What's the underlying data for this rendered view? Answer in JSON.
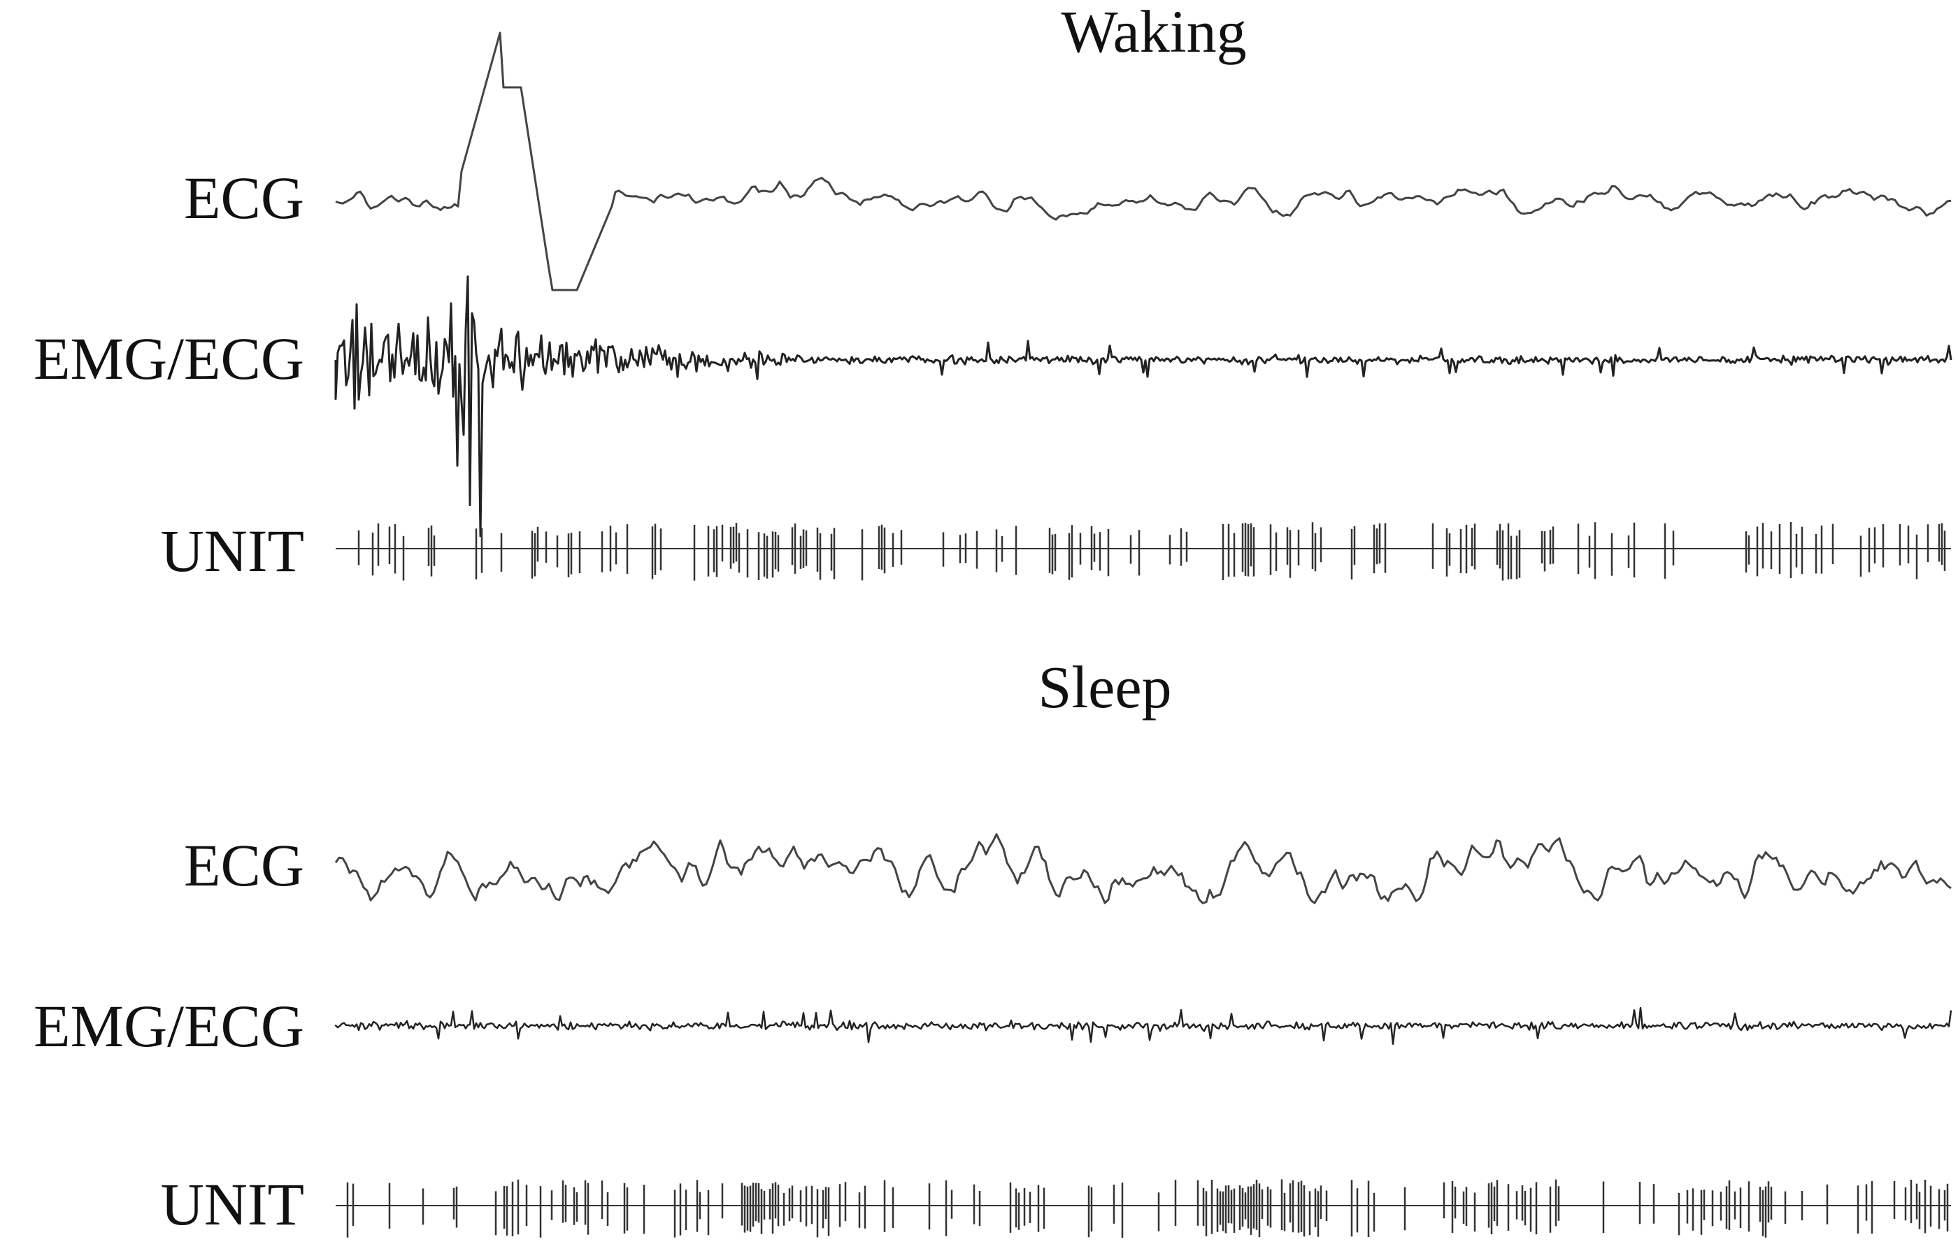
{
  "chart_data": [
    {
      "type": "line",
      "title": "Waking",
      "series": [
        {
          "name": "ECG",
          "kind": "trace",
          "color": "#444444"
        },
        {
          "name": "EMG/ECG",
          "kind": "trace",
          "color": "#222222"
        },
        {
          "name": "UNIT",
          "kind": "spikes",
          "color": "#333333"
        }
      ],
      "grid": false
    },
    {
      "type": "line",
      "title": "Sleep",
      "series": [
        {
          "name": "ECG",
          "kind": "trace",
          "color": "#444444"
        },
        {
          "name": "EMG/ECG",
          "kind": "trace",
          "color": "#222222"
        },
        {
          "name": "UNIT",
          "kind": "spikes",
          "color": "#333333"
        }
      ],
      "grid": false
    }
  ]
}
